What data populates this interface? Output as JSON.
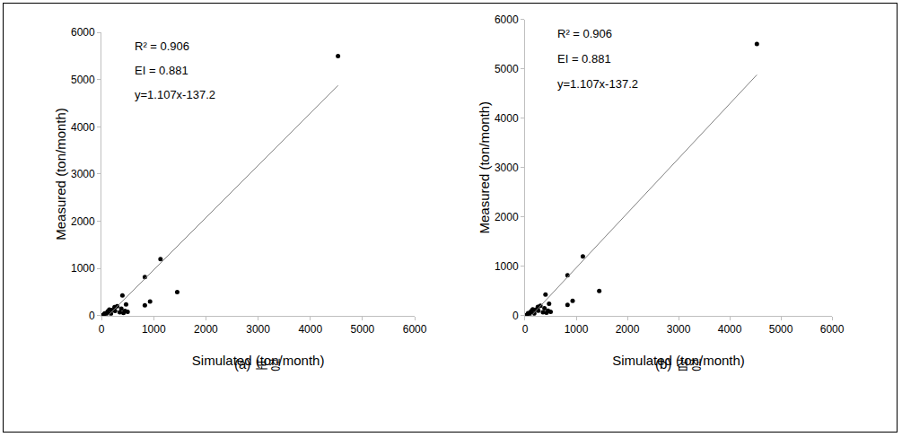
{
  "chart_data": [
    {
      "type": "scatter",
      "title": "(a) 보정",
      "x_label": "Simulated (ton/month)",
      "y_label": "Measured (ton/month)",
      "annotations": [
        "R² = 0.906",
        "EI = 0.881",
        "y=1.107x-137.2"
      ],
      "xlim": [
        0,
        6000
      ],
      "xticks": [
        0,
        1000,
        2000,
        3000,
        4000,
        5000,
        6000
      ],
      "ylim": [
        0,
        6000
      ],
      "yticks": [
        0,
        1000,
        2000,
        3000,
        4000,
        5000,
        6000
      ],
      "grid": false,
      "series": [
        {
          "type": "scatter",
          "marker": "circle",
          "color": "#000000",
          "x": [
            4530,
            1130,
            830,
            1450,
            930,
            830,
            400,
            470,
            450,
            300,
            250,
            200,
            150,
            100,
            50,
            30,
            80,
            350,
            420,
            500,
            380,
            120,
            60,
            20,
            180,
            260
          ],
          "values": [
            5500,
            1200,
            820,
            500,
            300,
            220,
            430,
            240,
            100,
            200,
            180,
            120,
            130,
            60,
            30,
            10,
            20,
            70,
            60,
            80,
            150,
            90,
            50,
            5,
            40,
            100
          ]
        },
        {
          "type": "line",
          "color": "#808080",
          "x": [
            124,
            4530
          ],
          "values": [
            0,
            4877
          ]
        }
      ]
    },
    {
      "type": "scatter",
      "title": "(b) 검정",
      "x_label": "Simulated (ton/month)",
      "y_label": "Measured (ton/month)",
      "annotations": [
        "R² = 0.906",
        "EI = 0.881",
        "y=1.107x-137.2"
      ],
      "xlim": [
        0,
        6000
      ],
      "xticks": [
        0,
        1000,
        2000,
        3000,
        4000,
        5000,
        6000
      ],
      "ylim": [
        0,
        6000
      ],
      "yticks": [
        0,
        1000,
        2000,
        3000,
        4000,
        5000,
        6000
      ],
      "grid": false,
      "series": [
        {
          "type": "scatter",
          "marker": "circle",
          "color": "#000000",
          "x": [
            4530,
            1130,
            830,
            1450,
            930,
            830,
            400,
            470,
            450,
            300,
            250,
            200,
            150,
            100,
            50,
            30,
            80,
            350,
            420,
            500,
            380,
            120,
            60,
            20,
            180,
            260
          ],
          "values": [
            5500,
            1200,
            820,
            500,
            300,
            220,
            430,
            240,
            100,
            200,
            180,
            120,
            130,
            60,
            30,
            10,
            20,
            70,
            60,
            80,
            150,
            90,
            50,
            5,
            40,
            100
          ]
        },
        {
          "type": "line",
          "color": "#808080",
          "x": [
            124,
            4530
          ],
          "values": [
            0,
            4877
          ]
        }
      ]
    }
  ]
}
